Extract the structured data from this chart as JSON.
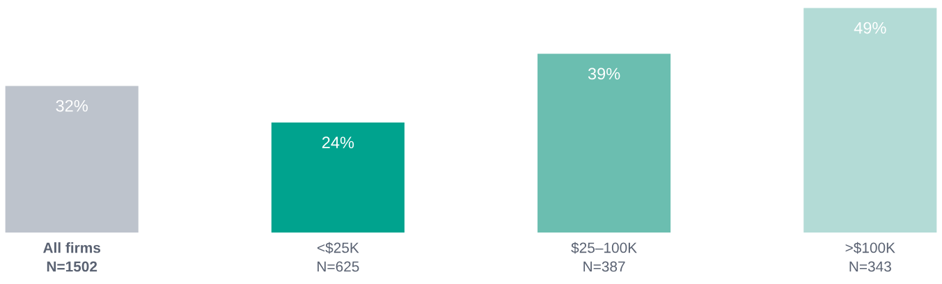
{
  "chart_data": {
    "type": "bar",
    "categories": [
      "All firms\nN=1502",
      "<$25K\nN=625",
      "$25–100K\nN=387",
      ">$100K\nN=343"
    ],
    "values": [
      32,
      24,
      39,
      49
    ],
    "colors": [
      "#bdc3cc",
      "#00a38e",
      "#6bbeb0",
      "#b3dbd6"
    ],
    "value_labels": [
      "32%",
      "24%",
      "39%",
      "49%"
    ],
    "grid": false,
    "legend": false
  }
}
